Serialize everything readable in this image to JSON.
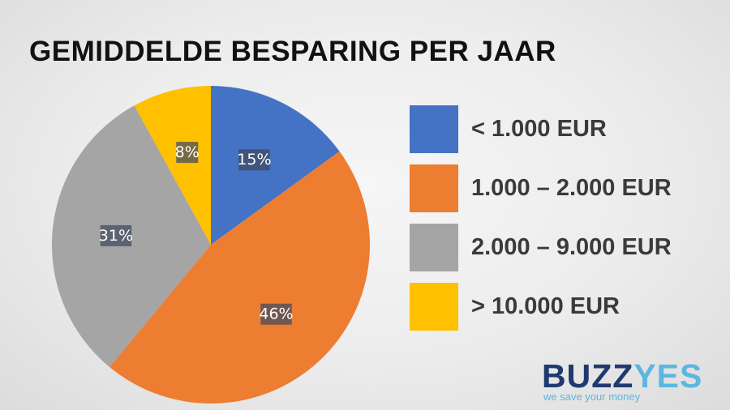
{
  "colors": {
    "blue": "#4472c4",
    "orange": "#ed7d31",
    "gray": "#a5a5a5",
    "yellow": "#ffc000"
  },
  "chart_data": {
    "type": "pie",
    "title": "GEMIDDELDE BESPARING PER JAAR",
    "slices": [
      {
        "legend": "< 1.000 EUR",
        "value": 15,
        "label": "15%",
        "color": "#4472c4"
      },
      {
        "legend": "1.000 – 2.000 EUR",
        "value": 46,
        "label": "46%",
        "color": "#ed7d31"
      },
      {
        "legend": "2.000 – 9.000 EUR",
        "value": 31,
        "label": "31%",
        "color": "#a5a5a5"
      },
      {
        "legend": "> 10.000 EUR",
        "value": 8,
        "label": "8%",
        "color": "#ffc000"
      }
    ],
    "legend_position": "right",
    "start": "12 o'clock, clockwise"
  },
  "logo": {
    "part1": "BUZZ",
    "part2": "YES",
    "tagline": "we save your money"
  }
}
